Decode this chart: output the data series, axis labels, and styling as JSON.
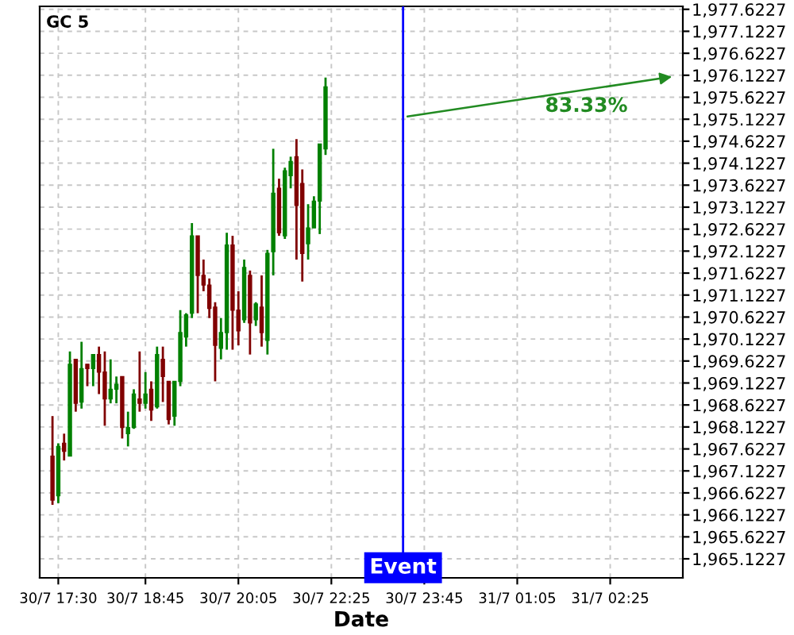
{
  "chart_data": {
    "type": "candlestick",
    "title": "GC 5",
    "xlabel": "Date",
    "categories": [
      null,
      "30/7 17:30",
      null,
      null,
      null,
      null,
      null,
      null,
      null,
      null,
      null,
      null,
      null,
      null,
      null,
      null,
      "30/7 18:45",
      null,
      null,
      null,
      null,
      null,
      null,
      null,
      null,
      null,
      null,
      null,
      null,
      null,
      null,
      null,
      "30/7 20:05",
      null,
      null,
      null,
      null,
      null,
      null,
      null,
      null,
      null,
      null,
      null,
      null,
      null,
      null,
      null,
      "30/7 22:25",
      null,
      null,
      null,
      null,
      null,
      null,
      null,
      null,
      null,
      null,
      null,
      null,
      null,
      null,
      null,
      "30/7 23:45",
      null,
      null,
      null,
      null,
      null,
      null,
      null,
      null,
      null,
      null,
      null,
      null,
      null,
      null,
      null,
      "31/7 01:05",
      null,
      null,
      null,
      null,
      null,
      null,
      null,
      null,
      null,
      null,
      null,
      null,
      null,
      null,
      null,
      "31/7 02:25",
      null,
      null,
      null,
      null,
      null,
      null,
      null,
      null,
      null,
      null,
      null,
      null
    ],
    "ohlc": [
      [
        1967.46,
        1968.37,
        1966.35,
        1966.46
      ],
      [
        1966.56,
        1967.75,
        1966.39,
        1967.68
      ],
      [
        1967.75,
        1967.97,
        1967.36,
        1967.57
      ],
      [
        1967.46,
        1969.84,
        1967.46,
        1969.55
      ],
      [
        1969.66,
        1969.66,
        1968.47,
        1968.66
      ],
      [
        1968.69,
        1970.06,
        1968.54,
        1969.45
      ],
      [
        1969.55,
        1969.55,
        1969.05,
        1969.45
      ],
      [
        1969.45,
        1969.77,
        1969.05,
        1969.77
      ],
      [
        1969.77,
        1969.95,
        1968.87,
        1969.37
      ],
      [
        1969.37,
        1969.84,
        1968.15,
        1968.76
      ],
      [
        1968.76,
        1969.66,
        1968.66,
        1968.98
      ],
      [
        1968.98,
        1969.27,
        1968.66,
        1969.09
      ],
      [
        1969.27,
        1969.27,
        1967.86,
        1968.11
      ],
      [
        1967.97,
        1968.47,
        1967.68,
        1968.11
      ],
      [
        1968.11,
        1968.98,
        1968.08,
        1968.87
      ],
      [
        1968.76,
        1969.84,
        1968.47,
        1968.66
      ],
      [
        1968.66,
        1969.37,
        1968.54,
        1968.87
      ],
      [
        1968.98,
        1969.16,
        1968.26,
        1968.51
      ],
      [
        1968.58,
        1969.95,
        1968.54,
        1969.77
      ],
      [
        1969.66,
        1969.95,
        1968.69,
        1969.27
      ],
      [
        1969.16,
        1969.16,
        1968.18,
        1968.29
      ],
      [
        1968.37,
        1969.16,
        1968.15,
        1969.16
      ],
      [
        1969.16,
        1970.78,
        1969.05,
        1970.27
      ],
      [
        1970.17,
        1970.71,
        1969.95,
        1970.67
      ],
      [
        1970.71,
        1972.76,
        1970.6,
        1972.47
      ],
      [
        1972.47,
        1972.47,
        1970.71,
        1971.57
      ],
      [
        1971.57,
        1971.93,
        1971.21,
        1971.35
      ],
      [
        1971.35,
        1971.5,
        1970.6,
        1970.82
      ],
      [
        1970.85,
        1970.96,
        1969.16,
        1969.98
      ],
      [
        1969.91,
        1970.6,
        1969.66,
        1970.27
      ],
      [
        1970.27,
        1972.54,
        1969.88,
        1972.26
      ],
      [
        1972.26,
        1972.47,
        1969.88,
        1970.78
      ],
      [
        1970.78,
        1971.21,
        1969.98,
        1970.31
      ],
      [
        1970.56,
        1971.93,
        1970.49,
        1971.75
      ],
      [
        1971.57,
        1971.68,
        1969.77,
        1970.49
      ],
      [
        1970.56,
        1970.96,
        1970.42,
        1970.92
      ],
      [
        1970.85,
        1971.57,
        1969.95,
        1970.27
      ],
      [
        1970.09,
        1972.15,
        1969.77,
        1972.07
      ],
      [
        1972.11,
        1974.45,
        1971.57,
        1973.44
      ],
      [
        1973.55,
        1973.77,
        1972.47,
        1972.54
      ],
      [
        1972.47,
        1974.02,
        1972.4,
        1973.95
      ],
      [
        1973.84,
        1974.27,
        1973.55,
        1974.16
      ],
      [
        1974.27,
        1974.67,
        1971.93,
        1973.16
      ],
      [
        1973.66,
        1973.98,
        1971.43,
        1972.07
      ],
      [
        1972.29,
        1973.19,
        1971.93,
        1972.65
      ],
      [
        1972.65,
        1973.37,
        1972.65,
        1973.26
      ],
      [
        1973.26,
        1974.56,
        1972.51,
        1974.56
      ],
      [
        1974.45,
        1976.07,
        1974.31,
        1975.86
      ],
      null,
      null,
      null,
      null,
      null,
      null,
      null,
      null,
      null,
      null,
      null,
      null,
      null,
      null,
      null,
      null,
      null,
      null,
      null,
      null,
      null,
      null,
      null,
      null,
      null,
      null,
      null,
      null,
      null,
      null,
      null,
      null,
      null,
      null,
      null,
      null,
      null,
      null,
      null,
      null,
      null,
      null,
      null,
      null,
      null,
      null,
      null,
      null,
      null,
      null,
      null,
      null,
      null,
      null,
      null,
      null,
      null,
      null,
      null,
      null,
      null
    ],
    "colors": [
      "#800000",
      "#008000",
      "#800000",
      "#008000",
      "#800000",
      "#008000",
      "#800000",
      "#008000",
      "#800000",
      "#800000",
      "#008000",
      "#008000",
      "#800000",
      "#008000",
      "#008000",
      "#800000",
      "#008000",
      "#800000",
      "#008000",
      "#800000",
      "#800000",
      "#008000",
      "#008000",
      "#008000",
      "#008000",
      "#800000",
      "#800000",
      "#800000",
      "#800000",
      "#008000",
      "#008000",
      "#800000",
      "#800000",
      "#008000",
      "#800000",
      "#008000",
      "#800000",
      "#008000",
      "#008000",
      "#800000",
      "#008000",
      "#008000",
      "#800000",
      "#800000",
      "#008000",
      "#008000",
      "#008000",
      "#008000",
      null,
      null,
      null,
      null,
      null,
      null,
      null,
      null,
      null,
      null,
      null,
      null,
      null,
      null,
      null,
      null,
      null,
      null,
      null,
      null,
      null,
      null,
      null,
      null,
      null,
      null,
      null,
      null,
      null,
      null,
      null,
      null,
      null,
      null,
      null,
      null,
      null,
      null,
      null,
      null,
      null,
      null,
      null,
      null,
      null,
      null,
      null,
      null,
      null,
      null,
      null,
      null,
      null,
      null,
      null,
      null,
      null,
      null,
      null,
      null,
      null
    ],
    "annotations": [
      "83.33%",
      "Event"
    ],
    "ylim": [
      1964.69,
      1977.69
    ],
    "yticks": [
      {
        "value": 1965.1227,
        "label": "1,965.1227"
      },
      {
        "value": 1965.6227,
        "label": "1,965.6227"
      },
      {
        "value": 1966.1227,
        "label": "1,966.1227"
      },
      {
        "value": 1966.6227,
        "label": "1,966.6227"
      },
      {
        "value": 1967.1227,
        "label": "1,967.1227"
      },
      {
        "value": 1967.6227,
        "label": "1,967.6227"
      },
      {
        "value": 1968.1227,
        "label": "1,968.1227"
      },
      {
        "value": 1968.6227,
        "label": "1,968.6227"
      },
      {
        "value": 1969.1227,
        "label": "1,969.1227"
      },
      {
        "value": 1969.6227,
        "label": "1,969.6227"
      },
      {
        "value": 1970.1227,
        "label": "1,970.1227"
      },
      {
        "value": 1970.6227,
        "label": "1,970.6227"
      },
      {
        "value": 1971.1227,
        "label": "1,971.1227"
      },
      {
        "value": 1971.6227,
        "label": "1,971.6227"
      },
      {
        "value": 1972.1227,
        "label": "1,972.1227"
      },
      {
        "value": 1972.6227,
        "label": "1,972.6227"
      },
      {
        "value": 1973.1227,
        "label": "1,973.1227"
      },
      {
        "value": 1973.6227,
        "label": "1,973.6227"
      },
      {
        "value": 1974.1227,
        "label": "1,974.1227"
      },
      {
        "value": 1974.6227,
        "label": "1,974.6227"
      },
      {
        "value": 1975.1227,
        "label": "1,975.1227"
      },
      {
        "value": 1975.6227,
        "label": "1,975.6227"
      },
      {
        "value": 1976.1227,
        "label": "1,976.1227"
      },
      {
        "value": 1976.6227,
        "label": "1,976.6227"
      },
      {
        "value": 1977.1227,
        "label": "1,977.1227"
      },
      {
        "value": 1977.6227,
        "label": "1,977.6227"
      }
    ],
    "grid": true
  }
}
